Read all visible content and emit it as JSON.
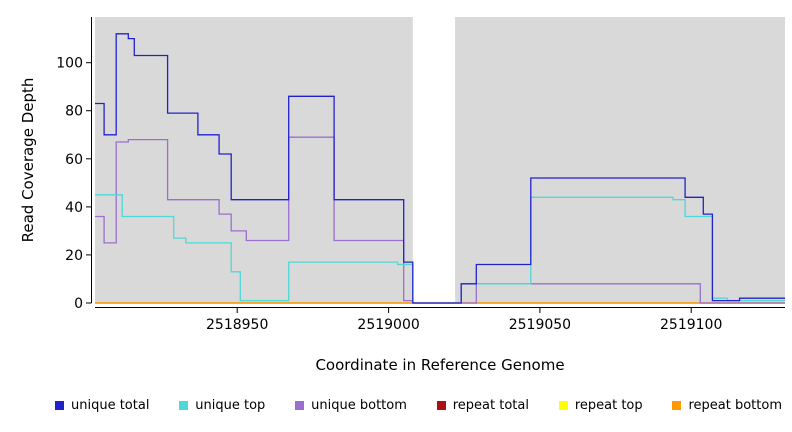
{
  "chart_data": {
    "type": "line",
    "step": true,
    "title": "",
    "xlabel": "Coordinate in Reference Genome",
    "ylabel": "Read Coverage Depth",
    "xlim": [
      2518903,
      2519131
    ],
    "ylim": [
      0,
      119
    ],
    "xticks": [
      2518950,
      2519000,
      2519050,
      2519100
    ],
    "yticks": [
      0,
      20,
      40,
      60,
      80,
      100
    ],
    "plot_bg": "#d9d9d9",
    "gap_region": [
      2519008,
      2519022
    ],
    "legend_position": "bottom",
    "grid": false,
    "series": [
      {
        "name": "unique total",
        "color": "#2222cc",
        "points": [
          [
            2518903,
            83
          ],
          [
            2518906,
            70
          ],
          [
            2518910,
            112
          ],
          [
            2518914,
            110
          ],
          [
            2518916,
            103
          ],
          [
            2518927,
            79
          ],
          [
            2518937,
            70
          ],
          [
            2518944,
            62
          ],
          [
            2518948,
            43
          ],
          [
            2518967,
            86
          ],
          [
            2518982,
            43
          ],
          [
            2519005,
            17
          ],
          [
            2519008,
            0
          ],
          [
            2519024,
            8
          ],
          [
            2519029,
            16
          ],
          [
            2519047,
            52
          ],
          [
            2519098,
            44
          ],
          [
            2519104,
            37
          ],
          [
            2519107,
            1
          ],
          [
            2519116,
            2
          ],
          [
            2519131,
            2
          ]
        ]
      },
      {
        "name": "unique top",
        "color": "#4fd8d8",
        "points": [
          [
            2518903,
            45
          ],
          [
            2518912,
            36
          ],
          [
            2518929,
            27
          ],
          [
            2518933,
            25
          ],
          [
            2518948,
            13
          ],
          [
            2518951,
            1
          ],
          [
            2518967,
            17
          ],
          [
            2519003,
            16
          ],
          [
            2519008,
            0
          ],
          [
            2519024,
            8
          ],
          [
            2519047,
            44
          ],
          [
            2519094,
            43
          ],
          [
            2519098,
            36
          ],
          [
            2519107,
            2
          ],
          [
            2519112,
            1
          ],
          [
            2519131,
            1
          ]
        ]
      },
      {
        "name": "unique bottom",
        "color": "#9a6fd0",
        "points": [
          [
            2518903,
            36
          ],
          [
            2518906,
            25
          ],
          [
            2518910,
            67
          ],
          [
            2518914,
            68
          ],
          [
            2518927,
            43
          ],
          [
            2518944,
            37
          ],
          [
            2518948,
            30
          ],
          [
            2518953,
            26
          ],
          [
            2518967,
            69
          ],
          [
            2518982,
            26
          ],
          [
            2519005,
            1
          ],
          [
            2519008,
            0
          ],
          [
            2519029,
            8
          ],
          [
            2519100,
            8
          ],
          [
            2519103,
            0
          ],
          [
            2519131,
            0
          ]
        ]
      },
      {
        "name": "repeat total",
        "color": "#aa1111",
        "points": [
          [
            2518903,
            0
          ],
          [
            2519131,
            0
          ]
        ]
      },
      {
        "name": "repeat top",
        "color": "#ffff00",
        "points": [
          [
            2518903,
            0
          ],
          [
            2519131,
            0
          ]
        ]
      },
      {
        "name": "repeat bottom",
        "color": "#ff9900",
        "points": [
          [
            2518903,
            0
          ],
          [
            2519131,
            0
          ]
        ]
      }
    ]
  }
}
